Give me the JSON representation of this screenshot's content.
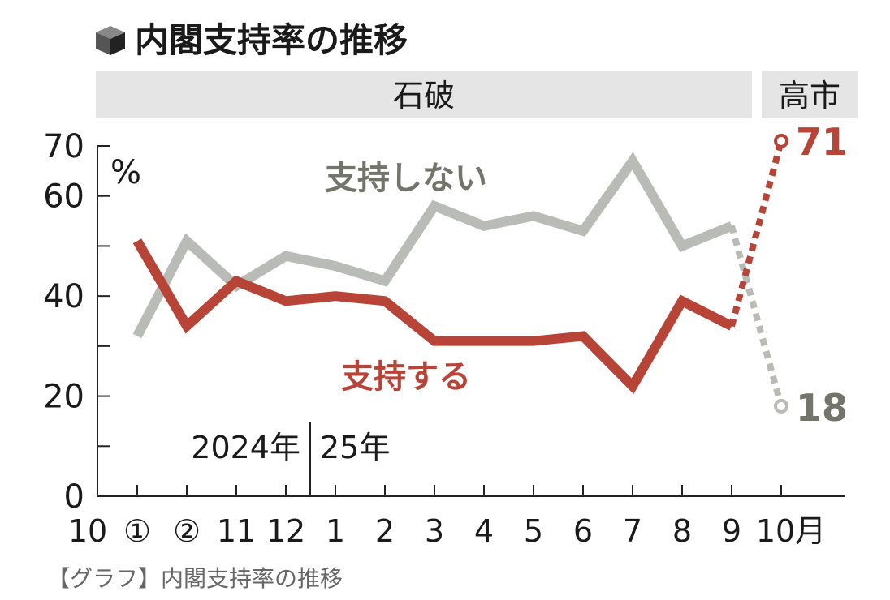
{
  "header": {
    "title": "内閣支持率の推移"
  },
  "bands": [
    {
      "label": "石破"
    },
    {
      "label": "高市"
    }
  ],
  "caption": "【グラフ】内閣支持率の推移",
  "chart_data": {
    "type": "line",
    "y_unit": "%",
    "ylim": [
      0,
      70
    ],
    "y_ticks": [
      0,
      20,
      40,
      60,
      70
    ],
    "y_minor_ticks": [
      10,
      30,
      50
    ],
    "x_labels": [
      "10",
      "①",
      "②",
      "11",
      "12",
      "1",
      "2",
      "3",
      "4",
      "5",
      "6",
      "7",
      "8",
      "9",
      "10月"
    ],
    "year_labels": [
      {
        "label": "2024年"
      },
      {
        "label": "25年"
      }
    ],
    "series": [
      {
        "name": "支持しない",
        "color": "#b9bbb6",
        "label_color": "#73756b",
        "values": [
          32,
          51,
          42,
          48,
          46,
          43,
          58,
          54,
          56,
          53,
          67,
          50,
          54,
          18
        ],
        "end_label": "18"
      },
      {
        "name": "支持する",
        "color": "#b84438",
        "label_color": "#b84438",
        "values": [
          51,
          34,
          43,
          39,
          40,
          39,
          31,
          31,
          31,
          32,
          22,
          39,
          34,
          71
        ],
        "end_label": "71"
      }
    ]
  }
}
